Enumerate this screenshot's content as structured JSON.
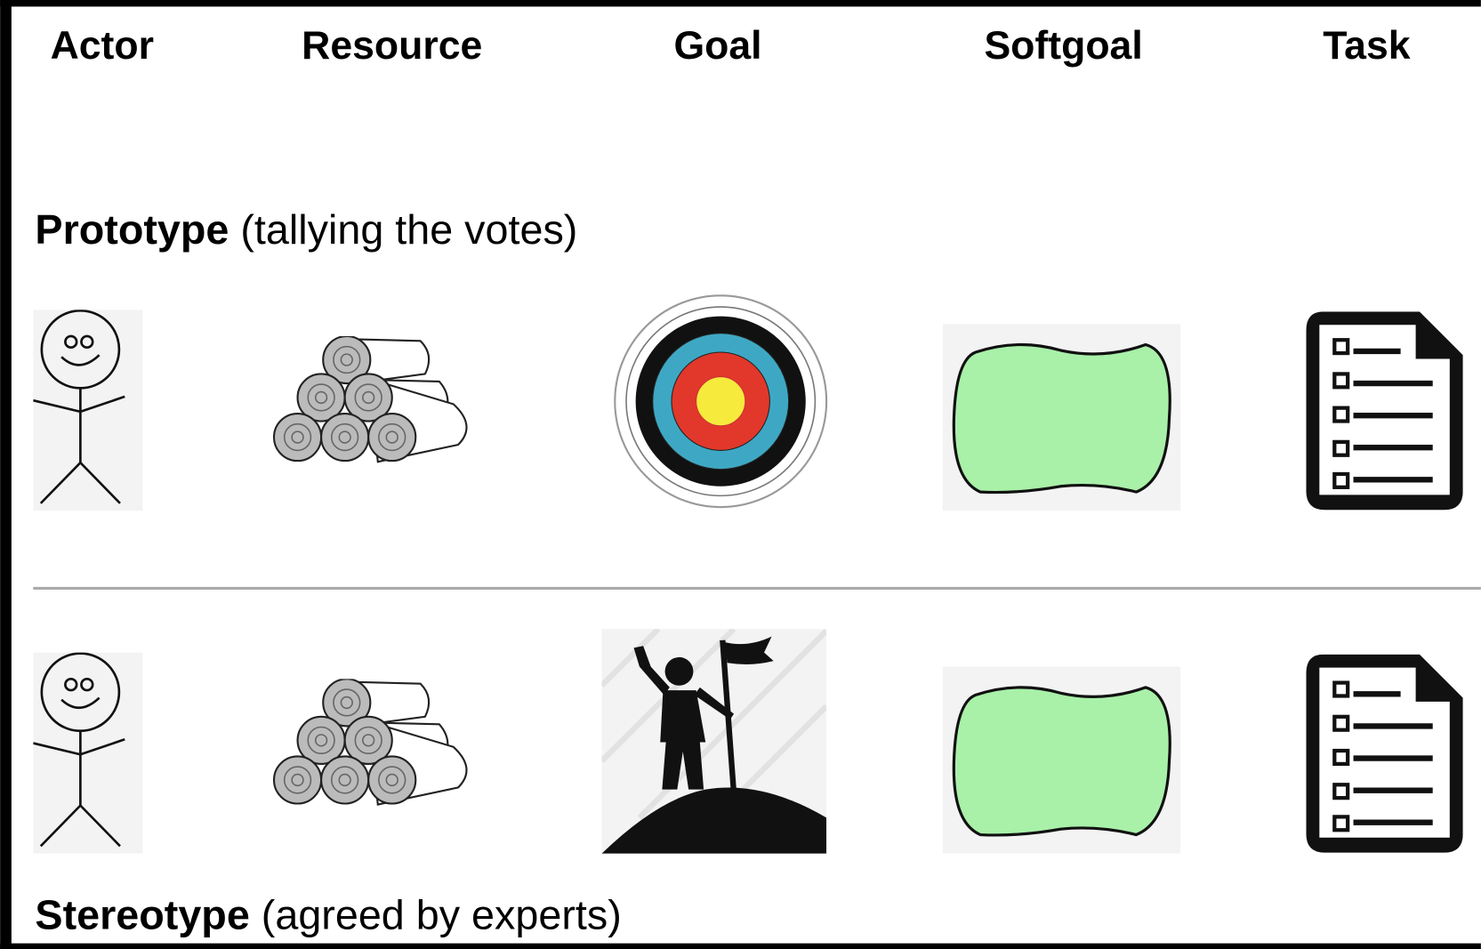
{
  "columns": [
    "Actor",
    "Resource",
    "Goal",
    "Softgoal",
    "Task"
  ],
  "sections": [
    {
      "label": "Prototype",
      "description": "(tallying the votes)"
    },
    {
      "label": "Stereotype",
      "description": "(agreed by experts)"
    }
  ]
}
